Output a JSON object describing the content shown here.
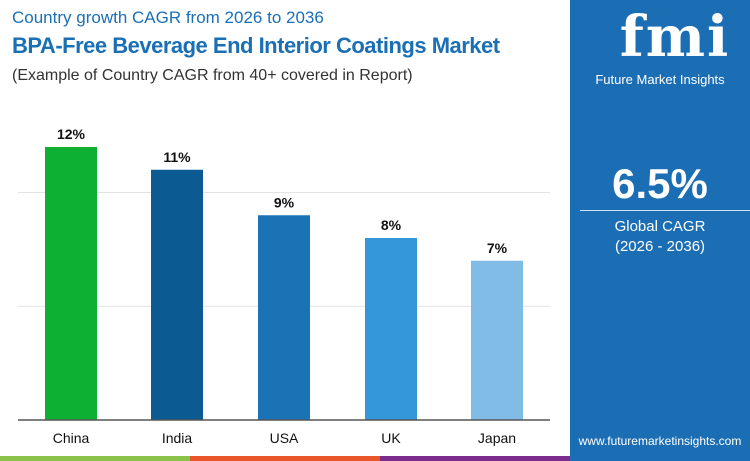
{
  "header": {
    "subtitle_top": "Country growth CAGR from 2026 to 2036",
    "title": "BPA-Free Beverage End Interior Coatings Market",
    "note": "(Example of Country CAGR from 40+ covered in Report)"
  },
  "panel": {
    "logo_letters": "fmi",
    "logo_text": "Future Market Insights",
    "value": "6.5%",
    "label": "Global CAGR",
    "period": "(2026 - 2036)",
    "website": "www.futuremarketinsights.com",
    "color": "#1c6eb4"
  },
  "chart_data": {
    "type": "bar",
    "categories": [
      "China",
      "India",
      "USA",
      "UK",
      "Japan"
    ],
    "values": [
      12,
      11,
      9,
      8,
      7
    ],
    "labels": [
      "12%",
      "11%",
      "9%",
      "8%",
      "7%"
    ],
    "colors": [
      "#0db033",
      "#0b5a92",
      "#1a73b5",
      "#3497d9",
      "#80bce6"
    ],
    "ylim": [
      0,
      15
    ],
    "grid": true
  }
}
